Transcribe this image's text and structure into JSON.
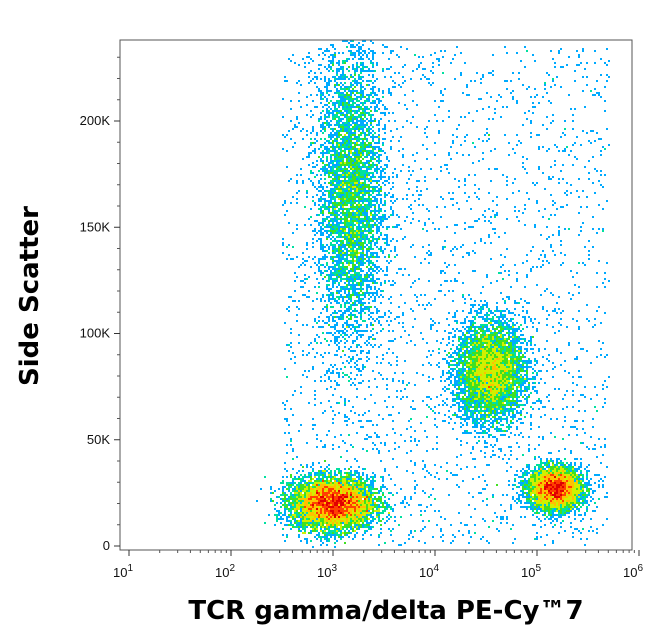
{
  "chart_data": {
    "type": "scatter",
    "style": "density-dot-plot",
    "xlabel": "TCR gamma/delta PE-Cy™7",
    "ylabel": "Side Scatter",
    "x_scale": "log",
    "xlim": [
      8,
      1000000
    ],
    "ylim": [
      -2000,
      237000
    ],
    "x_ticks": [
      {
        "base": "10",
        "exp": "1",
        "value": 10
      },
      {
        "base": "10",
        "exp": "2",
        "value": 100
      },
      {
        "base": "10",
        "exp": "3",
        "value": 1000
      },
      {
        "base": "10",
        "exp": "4",
        "value": 10000
      },
      {
        "base": "10",
        "exp": "5",
        "value": 100000
      },
      {
        "base": "10",
        "exp": "6",
        "value": 1000000
      }
    ],
    "y_ticks": [
      {
        "label": "0",
        "value": 0
      },
      {
        "label": "50K",
        "value": 50000
      },
      {
        "label": "100K",
        "value": 100000
      },
      {
        "label": "150K",
        "value": 150000
      },
      {
        "label": "200K",
        "value": 200000
      }
    ],
    "grid": false,
    "legend": "none",
    "colormap": [
      "#0000ff",
      "#00aaff",
      "#00e0a0",
      "#40e020",
      "#d0f000",
      "#ffc000",
      "#ff4000",
      "#e00000"
    ],
    "populations": [
      {
        "x_center": 1000,
        "y_center": 20000,
        "x_spread_decades": 0.2,
        "y_spread": 6000,
        "density": "high"
      },
      {
        "x_center": 1500,
        "y_center": 165000,
        "x_spread_decades": 0.16,
        "y_spread": 35000,
        "density": "medium"
      },
      {
        "x_center": 35000,
        "y_center": 82000,
        "x_spread_decades": 0.17,
        "y_spread": 12000,
        "density": "medium"
      },
      {
        "x_center": 150000,
        "y_center": 27000,
        "x_spread_decades": 0.13,
        "y_spread": 5000,
        "density": "medium"
      }
    ]
  }
}
